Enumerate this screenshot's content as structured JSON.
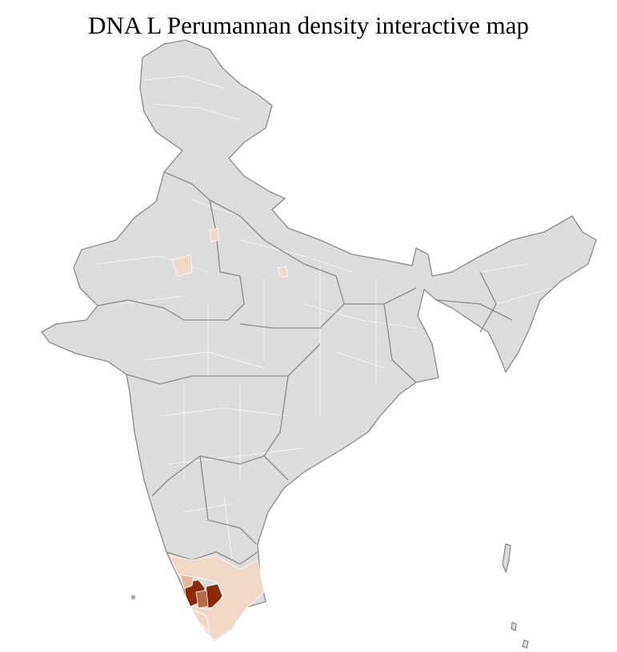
{
  "title": "DNA L Perumannan density interactive map",
  "colors": {
    "no_data": "#dcdcdc",
    "border": "#8a8a8a",
    "district_line": "#ffffff",
    "low": "#f0d8c9",
    "medium_low": "#e5b9a0",
    "medium": "#b9694a",
    "high": "#8b2a06"
  },
  "highlighted_regions": [
    {
      "level": "high"
    },
    {
      "level": "high"
    },
    {
      "level": "medium"
    },
    {
      "level": "medium_low"
    },
    {
      "level": "low"
    },
    {
      "level": "low"
    },
    {
      "level": "low"
    },
    {
      "level": "low"
    },
    {
      "level": "low"
    }
  ]
}
